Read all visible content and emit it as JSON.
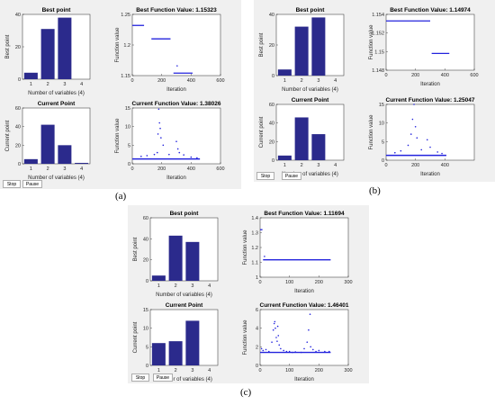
{
  "panels": [
    {
      "caption": "(a)",
      "buttons": {
        "stop": "Stop",
        "pause": "Pause"
      },
      "charts": [
        {
          "type": "bar",
          "title": "Best point",
          "xlabel": "Number of variables (4)",
          "ylabel": "Best point",
          "categories": [
            "1",
            "2",
            "3",
            "4"
          ],
          "values": [
            4,
            31,
            38,
            0
          ],
          "ylim": [
            0,
            40
          ],
          "yticks": [
            "0",
            "20",
            "40"
          ],
          "xticks": [
            "1",
            "2",
            "3",
            "4"
          ]
        },
        {
          "type": "line",
          "title": "Best Function Value: 1.15323",
          "xlabel": "Iteration",
          "ylabel": "Function value",
          "xlim": [
            0,
            600
          ],
          "ylim": [
            1.15,
            1.25
          ],
          "xticks": [
            "0",
            "200",
            "400",
            "600"
          ],
          "yticks": [
            "1.15",
            "1.2",
            "1.25"
          ],
          "segments": [
            {
              "x": [
                0,
                80
              ],
              "y": 1.232
            },
            {
              "x": 130,
              "x2": 260,
              "y": 1.21
            },
            {
              "x": 280,
              "x2": 410,
              "y": 1.154
            }
          ],
          "points": [
            [
              305,
              1.166
            ]
          ]
        },
        {
          "type": "bar",
          "title": "Current Point",
          "xlabel": "Number of variables (4)",
          "ylabel": "Current point",
          "categories": [
            "1",
            "2",
            "3",
            "4"
          ],
          "values": [
            5,
            42,
            20,
            1
          ],
          "ylim": [
            0,
            60
          ],
          "yticks": [
            "0",
            "20",
            "40",
            "60"
          ],
          "xticks": [
            "1",
            "2",
            "3",
            "4"
          ]
        },
        {
          "type": "scatter",
          "title": "Current Function Value: 1.38026",
          "xlabel": "Iteration",
          "ylabel": "Function value",
          "xlim": [
            0,
            600
          ],
          "ylim": [
            0,
            15
          ],
          "xticks": [
            "0",
            "200",
            "400",
            "600"
          ],
          "yticks": [
            "0",
            "5",
            "10",
            "15"
          ],
          "baseline": {
            "x": [
              0,
              460
            ],
            "y": 1.3
          },
          "points": [
            [
              180,
              14.7
            ],
            [
              185,
              11
            ],
            [
              190,
              9.5
            ],
            [
              175,
              8
            ],
            [
              195,
              7
            ],
            [
              210,
              5
            ],
            [
              170,
              3
            ],
            [
              300,
              6
            ],
            [
              310,
              4
            ],
            [
              320,
              3
            ],
            [
              150,
              2.5
            ],
            [
              60,
              2
            ],
            [
              100,
              2.2
            ],
            [
              250,
              2.5
            ],
            [
              350,
              2.4
            ],
            [
              400,
              1.8
            ],
            [
              440,
              1.6
            ]
          ]
        }
      ]
    },
    {
      "caption": "(b)",
      "buttons": {
        "stop": "Stop",
        "pause": "Pause"
      },
      "charts": [
        {
          "type": "bar",
          "title": "Best point",
          "xlabel": "Number of variables (4)",
          "ylabel": "Best point",
          "categories": [
            "1",
            "2",
            "3",
            "4"
          ],
          "values": [
            4,
            32,
            38,
            0
          ],
          "ylim": [
            0,
            40
          ],
          "yticks": [
            "0",
            "20",
            "40"
          ],
          "xticks": [
            "1",
            "2",
            "3",
            "4"
          ]
        },
        {
          "type": "line",
          "title": "Best Function Value: 1.14974",
          "xlabel": "Iteration",
          "ylabel": "Function value",
          "xlim": [
            0,
            600
          ],
          "ylim": [
            1.148,
            1.154
          ],
          "xticks": [
            "0",
            "200",
            "400",
            "600"
          ],
          "yticks": [
            "1.148",
            "1.15",
            "1.152",
            "1.154"
          ],
          "segments": [
            {
              "x": [
                0,
                300
              ],
              "y": 1.1533
            },
            {
              "x": 310,
              "x2": 430,
              "y": 1.1498
            }
          ],
          "points": []
        },
        {
          "type": "bar",
          "title": "Current Point",
          "xlabel": "Number of variables (4)",
          "ylabel": "Current point",
          "categories": [
            "1",
            "2",
            "3",
            "4"
          ],
          "values": [
            5,
            46,
            28,
            0
          ],
          "ylim": [
            0,
            60
          ],
          "yticks": [
            "0",
            "20",
            "40",
            "60"
          ],
          "xticks": [
            "1",
            "2",
            "3",
            "4"
          ]
        },
        {
          "type": "scatter",
          "title": "Current Function Value: 1.25047",
          "xlabel": "Iteration",
          "ylabel": "Function value",
          "xlim": [
            0,
            600
          ],
          "ylim": [
            0,
            15
          ],
          "xticks": [
            "0",
            "200",
            "400"
          ],
          "yticks": [
            "0",
            "5",
            "10",
            "15"
          ],
          "baseline": {
            "x": [
              0,
              410
            ],
            "y": 1.3
          },
          "points": [
            [
              190,
              15
            ],
            [
              180,
              11
            ],
            [
              200,
              9
            ],
            [
              170,
              7
            ],
            [
              210,
              6
            ],
            [
              150,
              4
            ],
            [
              280,
              5.5
            ],
            [
              300,
              3.5
            ],
            [
              100,
              2.5
            ],
            [
              60,
              2
            ],
            [
              240,
              2.8
            ],
            [
              350,
              2.2
            ],
            [
              380,
              1.8
            ]
          ]
        }
      ]
    },
    {
      "caption": "(c)",
      "buttons": {
        "stop": "Stop",
        "pause": "Pause"
      },
      "charts": [
        {
          "type": "bar",
          "title": "Best point",
          "xlabel": "Number of variables (4)",
          "ylabel": "Best point",
          "categories": [
            "1",
            "2",
            "3",
            "4"
          ],
          "values": [
            5,
            43,
            37,
            0
          ],
          "ylim": [
            0,
            60
          ],
          "yticks": [
            "0",
            "20",
            "40",
            "60"
          ],
          "xticks": [
            "1",
            "2",
            "3",
            "4"
          ]
        },
        {
          "type": "line",
          "title": "Best Function Value: 1.11694",
          "xlabel": "Iteration",
          "ylabel": "Function value",
          "xlim": [
            0,
            300
          ],
          "ylim": [
            1.0,
            1.4
          ],
          "xticks": [
            "0",
            "100",
            "200",
            "300"
          ],
          "yticks": [
            "1",
            "1.1",
            "1.2",
            "1.3",
            "1.4"
          ],
          "segments": [
            {
              "x": [
                0,
                8
              ],
              "y": 1.32
            },
            {
              "x": 10,
              "x2": 240,
              "y": 1.117
            }
          ],
          "points": [
            [
              15,
              1.14
            ]
          ]
        },
        {
          "type": "bar",
          "title": "Current Point",
          "xlabel": "Number of variables (4)",
          "ylabel": "Current point",
          "categories": [
            "1",
            "2",
            "3",
            "4"
          ],
          "values": [
            6,
            6.5,
            12,
            0
          ],
          "ylim": [
            0,
            15
          ],
          "yticks": [
            "0",
            "5",
            "10",
            "15"
          ],
          "xticks": [
            "1",
            "2",
            "3",
            "4"
          ]
        },
        {
          "type": "scatter",
          "title": "Current Function Value: 1.46401",
          "xlabel": "Iteration",
          "ylabel": "Function value",
          "xlim": [
            0,
            300
          ],
          "ylim": [
            0,
            6
          ],
          "xticks": [
            "0",
            "100",
            "200",
            "300"
          ],
          "yticks": [
            "0",
            "2",
            "4",
            "6"
          ],
          "baseline": {
            "x": [
              0,
              240
            ],
            "y": 1.4
          },
          "points": [
            [
              5,
              1.8
            ],
            [
              10,
              1.6
            ],
            [
              20,
              1.7
            ],
            [
              30,
              1.5
            ],
            [
              40,
              2.5
            ],
            [
              45,
              3.8
            ],
            [
              48,
              4.5
            ],
            [
              50,
              4.7
            ],
            [
              52,
              4.0
            ],
            [
              55,
              3.0
            ],
            [
              58,
              2.6
            ],
            [
              60,
              4.2
            ],
            [
              62,
              3.2
            ],
            [
              65,
              2.2
            ],
            [
              70,
              1.8
            ],
            [
              80,
              1.6
            ],
            [
              90,
              1.5
            ],
            [
              100,
              1.5
            ],
            [
              110,
              1.4
            ],
            [
              120,
              1.45
            ],
            [
              140,
              1.4
            ],
            [
              150,
              1.8
            ],
            [
              160,
              2.5
            ],
            [
              165,
              3.8
            ],
            [
              170,
              5.5
            ],
            [
              172,
              2.0
            ],
            [
              180,
              1.7
            ],
            [
              190,
              1.5
            ],
            [
              200,
              1.6
            ],
            [
              220,
              1.5
            ],
            [
              235,
              1.5
            ]
          ]
        }
      ]
    }
  ],
  "colors": {
    "bar": "#2b2a8c",
    "mark": "#2222dd",
    "panel": "#f0f0f0",
    "axes": "#ffffff"
  }
}
